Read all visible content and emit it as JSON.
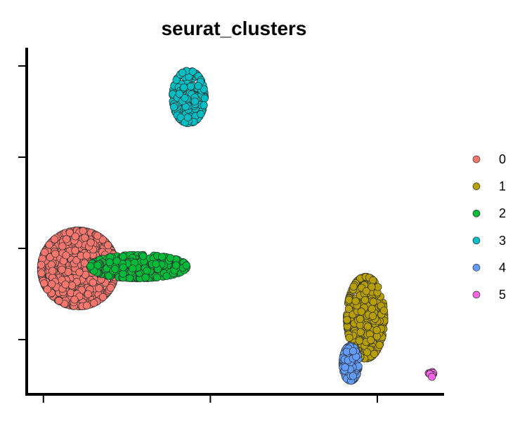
{
  "chart_data": {
    "type": "scatter",
    "title": "seurat_clusters",
    "xlabel": "",
    "ylabel": "",
    "xlim": [
      -11,
      14
    ],
    "ylim": [
      -8,
      11
    ],
    "x_ticks": [
      -10,
      0,
      10
    ],
    "y_ticks": [
      -5,
      0,
      5,
      10
    ],
    "tick_labels_shown": false,
    "grid": false,
    "legend": {
      "position": "right",
      "entries": [
        "0",
        "1",
        "2",
        "3",
        "4",
        "5"
      ]
    },
    "colors": {
      "0": "#F8766D",
      "1": "#B79F00",
      "2": "#00BA38",
      "3": "#00BFC4",
      "4": "#619CFF",
      "5": "#F564E3"
    },
    "clusters": [
      {
        "name": "0",
        "center": [
          -7.9,
          -1.1
        ],
        "spread": [
          1.4,
          1.3
        ],
        "n": 700
      },
      {
        "name": "1",
        "center": [
          9.3,
          -3.8
        ],
        "spread": [
          0.7,
          1.4
        ],
        "n": 450
      },
      {
        "name": "2",
        "center": [
          -4.3,
          -1.0
        ],
        "spread": [
          1.8,
          0.4
        ],
        "n": 340
      },
      {
        "name": "3",
        "center": [
          -1.3,
          8.3
        ],
        "spread": [
          0.6,
          0.9
        ],
        "n": 220
      },
      {
        "name": "4",
        "center": [
          8.4,
          -6.3
        ],
        "spread": [
          0.3,
          0.6
        ],
        "n": 150
      },
      {
        "name": "5",
        "center": [
          13.2,
          -6.9
        ],
        "spread": [
          0.1,
          0.1
        ],
        "n": 12
      }
    ]
  }
}
